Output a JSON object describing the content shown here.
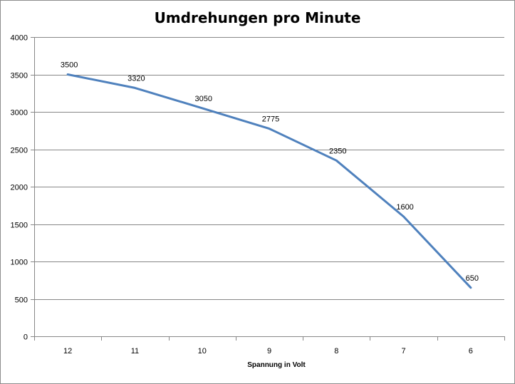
{
  "chart_data": {
    "type": "line",
    "title": "Umdrehungen pro Minute",
    "xlabel": "Spannung  in Volt",
    "ylabel": "",
    "categories": [
      "12",
      "11",
      "10",
      "9",
      "8",
      "7",
      "6"
    ],
    "series": [
      {
        "values": [
          3500,
          3320,
          3050,
          2775,
          2350,
          1600,
          650
        ]
      }
    ],
    "data_labels": [
      "3500",
      "3320",
      "3050",
      "2775",
      "2350",
      "1600",
      "650"
    ],
    "ylim": [
      0,
      4000
    ],
    "yticks": [
      0,
      500,
      1000,
      1500,
      2000,
      2500,
      3000,
      3500,
      4000
    ],
    "grid": true,
    "legend": "none",
    "line_color": "#4f81bd"
  }
}
